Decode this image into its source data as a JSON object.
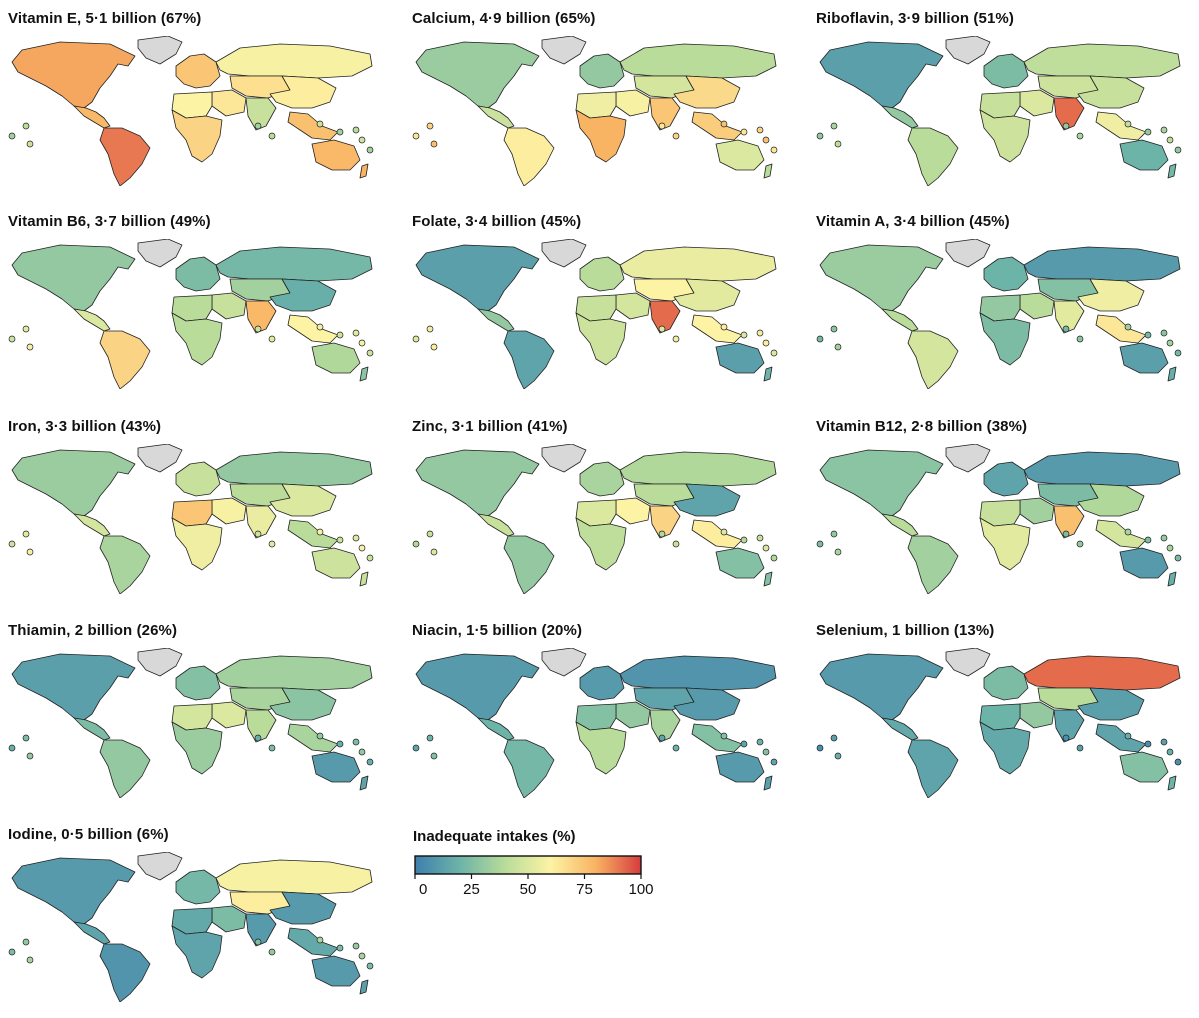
{
  "figure": {
    "colormap": {
      "low": "#3e7fae",
      "stops": [
        "#3e7fae",
        "#6db4a8",
        "#b9dc9a",
        "#fdf3a4",
        "#f8b363",
        "#d63c3e"
      ],
      "absent": "#d8d8d8"
    }
  },
  "panels": [
    {
      "title": "Vitamin E, 5·1 billion (67%)",
      "regions": {
        "north_america": 82,
        "greenland": null,
        "central_america": 78,
        "south_america": 90,
        "europe": 74,
        "russia": 58,
        "central_asia": 66,
        "middle_east": 64,
        "africa_north": 60,
        "africa_sub": 70,
        "south_asia": 44,
        "east_asia": 62,
        "southeast_asia": 76,
        "australia": 78,
        "new_zealand": 80,
        "islands": 40
      }
    },
    {
      "title": "Calcium, 4·9 billion (65%)",
      "regions": {
        "north_america": 32,
        "greenland": null,
        "central_america": 45,
        "south_america": 62,
        "europe": 30,
        "russia": 40,
        "central_asia": 48,
        "middle_east": 58,
        "africa_north": 56,
        "africa_sub": 80,
        "south_asia": 74,
        "east_asia": 68,
        "southeast_asia": 72,
        "australia": 50,
        "new_zealand": 40,
        "islands": 70
      }
    },
    {
      "title": "Riboflavin, 3·9 billion (51%)",
      "regions": {
        "north_america": 12,
        "greenland": null,
        "central_america": 30,
        "south_america": 40,
        "europe": 24,
        "russia": 42,
        "central_asia": 46,
        "middle_east": 50,
        "africa_north": 44,
        "africa_sub": 46,
        "south_asia": 92,
        "east_asia": 44,
        "southeast_asia": 56,
        "australia": 20,
        "new_zealand": 22,
        "islands": 36
      }
    },
    {
      "title": "Vitamin B6, 3·7 billion (49%)",
      "regions": {
        "north_america": 30,
        "greenland": null,
        "central_america": 50,
        "south_america": 70,
        "europe": 24,
        "russia": 22,
        "central_asia": 34,
        "middle_east": 44,
        "africa_north": 40,
        "africa_sub": 40,
        "south_asia": 78,
        "east_asia": 18,
        "southeast_asia": 60,
        "australia": 38,
        "new_zealand": 28,
        "islands": 52
      }
    },
    {
      "title": "Folate, 3·4 billion (45%)",
      "regions": {
        "north_america": 12,
        "greenland": null,
        "central_america": 30,
        "south_america": 14,
        "europe": 40,
        "russia": 54,
        "central_asia": 60,
        "middle_east": 48,
        "africa_north": 44,
        "africa_sub": 46,
        "south_asia": 92,
        "east_asia": 52,
        "southeast_asia": 60,
        "australia": 12,
        "new_zealand": 20,
        "islands": 56
      }
    },
    {
      "title": "Vitamin A, 3·4 billion (45%)",
      "regions": {
        "north_america": 32,
        "greenland": null,
        "central_america": 40,
        "south_america": 48,
        "europe": 20,
        "russia": 10,
        "central_asia": 26,
        "middle_east": 40,
        "africa_north": 30,
        "africa_sub": 24,
        "south_asia": 52,
        "east_asia": 56,
        "southeast_asia": 64,
        "australia": 12,
        "new_zealand": 18,
        "islands": 28
      }
    },
    {
      "title": "Iron, 3·3 billion (43%)",
      "regions": {
        "north_america": 32,
        "greenland": null,
        "central_america": 48,
        "south_america": 36,
        "europe": 44,
        "russia": 30,
        "central_asia": 40,
        "middle_east": 58,
        "africa_north": 74,
        "africa_sub": 56,
        "south_asia": 54,
        "east_asia": 50,
        "southeast_asia": 40,
        "australia": 46,
        "new_zealand": 44,
        "islands": 52
      }
    },
    {
      "title": "Zinc, 3·1 billion (41%)",
      "regions": {
        "north_america": 30,
        "greenland": null,
        "central_america": 44,
        "south_america": 30,
        "europe": 36,
        "russia": 38,
        "central_asia": 40,
        "middle_east": 60,
        "africa_north": 50,
        "africa_sub": 42,
        "south_asia": 70,
        "east_asia": 14,
        "southeast_asia": 62,
        "australia": 26,
        "new_zealand": 26,
        "islands": 44
      }
    },
    {
      "title": "Vitamin B12, 2·8 billion (38%)",
      "regions": {
        "north_america": 28,
        "greenland": null,
        "central_america": 40,
        "south_america": 34,
        "europe": 14,
        "russia": 10,
        "central_asia": 24,
        "middle_east": 34,
        "africa_north": 44,
        "africa_sub": 52,
        "south_asia": 76,
        "east_asia": 38,
        "southeast_asia": 48,
        "australia": 10,
        "new_zealand": 18,
        "islands": 30
      }
    },
    {
      "title": "Thiamin, 2 billion (26%)",
      "regions": {
        "north_america": 12,
        "greenland": null,
        "central_america": 24,
        "south_america": 30,
        "europe": 26,
        "russia": 34,
        "central_asia": 36,
        "middle_east": 50,
        "africa_north": 48,
        "africa_sub": 32,
        "south_asia": 40,
        "east_asia": 28,
        "southeast_asia": 36,
        "australia": 10,
        "new_zealand": 14,
        "islands": 24
      }
    },
    {
      "title": "Niacin, 1·5 billion (20%)",
      "regions": {
        "north_america": 10,
        "greenland": null,
        "central_america": 20,
        "south_america": 22,
        "europe": 10,
        "russia": 8,
        "central_asia": 14,
        "middle_east": 30,
        "africa_north": 26,
        "africa_sub": 40,
        "south_asia": 36,
        "east_asia": 10,
        "southeast_asia": 26,
        "australia": 10,
        "new_zealand": 12,
        "islands": 20
      }
    },
    {
      "title": "Selenium, 1 billion (13%)",
      "regions": {
        "north_america": 10,
        "greenland": null,
        "central_america": 16,
        "south_america": 14,
        "europe": 24,
        "russia": 92,
        "central_asia": 40,
        "middle_east": 30,
        "africa_north": 20,
        "africa_sub": 16,
        "south_asia": 14,
        "east_asia": 12,
        "southeast_asia": 14,
        "australia": 26,
        "new_zealand": 20,
        "islands": 12
      }
    },
    {
      "title": "Iodine, 0·5 billion (6%)",
      "regions": {
        "north_america": 10,
        "greenland": null,
        "central_america": 14,
        "south_america": 8,
        "europe": 22,
        "russia": 58,
        "central_asia": 62,
        "middle_east": 24,
        "africa_north": 16,
        "africa_sub": 14,
        "south_asia": 10,
        "east_asia": 10,
        "southeast_asia": 16,
        "australia": 10,
        "new_zealand": 12,
        "islands": 30
      }
    }
  ],
  "legend": {
    "title": "Inadequate intakes (%)",
    "ticks": [
      "0",
      "25",
      "50",
      "75",
      "100"
    ],
    "range": [
      0,
      100
    ]
  }
}
